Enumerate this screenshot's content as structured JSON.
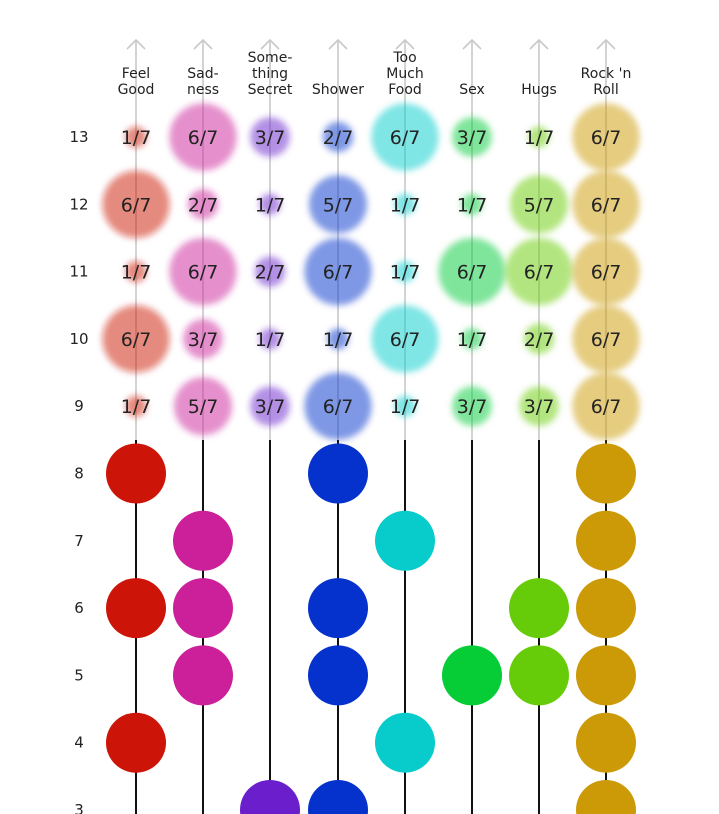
{
  "chart_data": {
    "type": "scatter",
    "row_labels": [
      "13",
      "12",
      "11",
      "10",
      "9",
      "8",
      "7",
      "6",
      "5",
      "4",
      "3"
    ],
    "series": [
      {
        "name": "Feel Good",
        "label_lines": [
          "Feel",
          "Good"
        ],
        "color": "#cc1409",
        "fractions": [
          "1/7",
          "6/7",
          "1/7",
          "6/7",
          "1/7"
        ],
        "fraction_values": [
          1,
          6,
          1,
          6,
          1
        ],
        "filled_rows": [
          8,
          6,
          4
        ]
      },
      {
        "name": "Sadness",
        "label_lines": [
          "Sad-",
          "ness"
        ],
        "color": "#cc1f9a",
        "fractions": [
          "6/7",
          "2/7",
          "6/7",
          "3/7",
          "5/7"
        ],
        "fraction_values": [
          6,
          2,
          6,
          3,
          5
        ],
        "filled_rows": [
          7,
          6,
          5
        ]
      },
      {
        "name": "Something Secret",
        "label_lines": [
          "Some-",
          "thing",
          "Secret"
        ],
        "color": "#6a1ecc",
        "fractions": [
          "3/7",
          "1/7",
          "2/7",
          "1/7",
          "3/7"
        ],
        "fraction_values": [
          3,
          1,
          2,
          1,
          3
        ],
        "filled_rows": [
          3
        ]
      },
      {
        "name": "Shower",
        "label_lines": [
          "Shower"
        ],
        "color": "#0531cc",
        "fractions": [
          "2/7",
          "5/7",
          "6/7",
          "1/7",
          "6/7"
        ],
        "fraction_values": [
          2,
          5,
          6,
          1,
          6
        ],
        "filled_rows": [
          8,
          6,
          5,
          3
        ]
      },
      {
        "name": "Too Much Food",
        "label_lines": [
          "Too",
          "Much",
          "Food"
        ],
        "color": "#08cccc",
        "fractions": [
          "6/7",
          "1/7",
          "1/7",
          "6/7",
          "1/7"
        ],
        "fraction_values": [
          6,
          1,
          1,
          6,
          1
        ],
        "filled_rows": [
          7,
          4
        ]
      },
      {
        "name": "Sex",
        "label_lines": [
          "Sex"
        ],
        "color": "#06cc36",
        "fractions": [
          "3/7",
          "1/7",
          "6/7",
          "1/7",
          "3/7"
        ],
        "fraction_values": [
          3,
          1,
          6,
          1,
          3
        ],
        "filled_rows": [
          5
        ]
      },
      {
        "name": "Hugs",
        "label_lines": [
          "Hugs"
        ],
        "color": "#66cc09",
        "fractions": [
          "1/7",
          "5/7",
          "6/7",
          "2/7",
          "3/7"
        ],
        "fraction_values": [
          1,
          5,
          6,
          2,
          3
        ],
        "filled_rows": [
          6,
          5
        ]
      },
      {
        "name": "Rock 'n Roll",
        "label_lines": [
          "Rock 'n",
          "Roll"
        ],
        "color": "#cc9a06",
        "fractions": [
          "6/7",
          "6/7",
          "6/7",
          "6/7",
          "6/7"
        ],
        "fraction_values": [
          6,
          6,
          6,
          6,
          6
        ],
        "filled_rows": [
          8,
          7,
          6,
          5,
          4,
          3
        ]
      }
    ]
  }
}
